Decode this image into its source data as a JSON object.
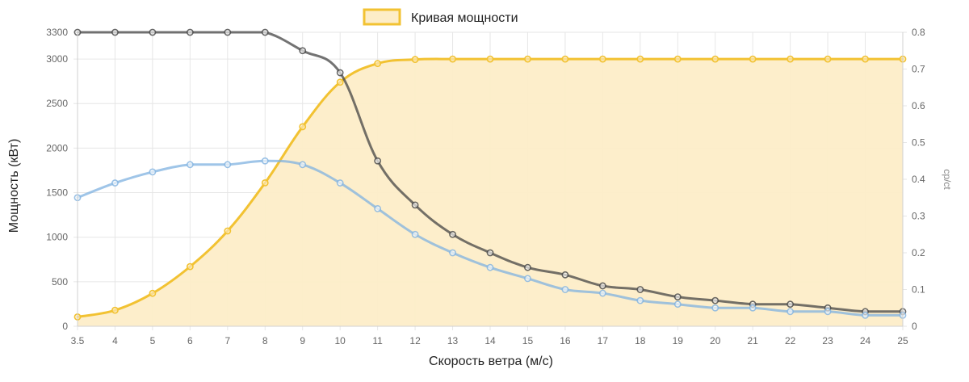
{
  "chart_data": {
    "type": "line",
    "title": "",
    "xlabel": "Скорость ветра (м/с)",
    "ylabel": "Мощность (кВт)",
    "y2label": "cp/ct",
    "x": [
      "3.5",
      "4",
      "5",
      "6",
      "7",
      "8",
      "9",
      "10",
      "11",
      "12",
      "13",
      "14",
      "15",
      "16",
      "17",
      "18",
      "19",
      "20",
      "21",
      "22",
      "23",
      "24",
      "25"
    ],
    "x_ticks": [
      "3.5",
      "4",
      "5",
      "6",
      "7",
      "8",
      "9",
      "10",
      "11",
      "12",
      "13",
      "14",
      "15",
      "16",
      "17",
      "18",
      "19",
      "20",
      "21",
      "22",
      "23",
      "24",
      "25"
    ],
    "ylim": [
      0,
      3300
    ],
    "y_ticks": [
      "0",
      "500",
      "1000",
      "1500",
      "2000",
      "2500",
      "3000",
      "3300"
    ],
    "y_tick_values": [
      0,
      500,
      1000,
      1500,
      2000,
      2500,
      3000,
      3300
    ],
    "y2lim": [
      0,
      0.8
    ],
    "y2_ticks": [
      "0",
      "0.1",
      "0.2",
      "0.3",
      "0.4",
      "0.5",
      "0.6",
      "0.7",
      "0.8"
    ],
    "y2_tick_values": [
      0,
      0.1,
      0.2,
      0.3,
      0.4,
      0.5,
      0.6,
      0.7,
      0.8
    ],
    "grid": true,
    "legend_position": "top-center",
    "legend": [
      {
        "label": "Кривая мощности",
        "color": "#f2c232"
      }
    ],
    "series": [
      {
        "name": "Кривая мощности",
        "axis": "left",
        "color": "#f2c232",
        "fill": "#fdedc8",
        "values": [
          105,
          180,
          370,
          670,
          1070,
          1610,
          2240,
          2740,
          2950,
          2995,
          3000,
          3000,
          3000,
          3000,
          3000,
          3000,
          3000,
          3000,
          3000,
          3000,
          3000,
          3000,
          3000
        ]
      },
      {
        "axis": "right",
        "color": "#444444",
        "values": [
          0.8,
          0.8,
          0.8,
          0.8,
          0.8,
          0.8,
          0.75,
          0.69,
          0.45,
          0.33,
          0.25,
          0.2,
          0.16,
          0.14,
          0.11,
          0.1,
          0.08,
          0.07,
          0.06,
          0.06,
          0.05,
          0.04,
          0.04
        ]
      },
      {
        "axis": "right",
        "color": "#7fb2e0",
        "values": [
          0.35,
          0.39,
          0.42,
          0.44,
          0.44,
          0.45,
          0.44,
          0.39,
          0.32,
          0.25,
          0.2,
          0.16,
          0.13,
          0.1,
          0.09,
          0.07,
          0.06,
          0.05,
          0.05,
          0.04,
          0.04,
          0.03,
          0.03
        ]
      }
    ]
  }
}
